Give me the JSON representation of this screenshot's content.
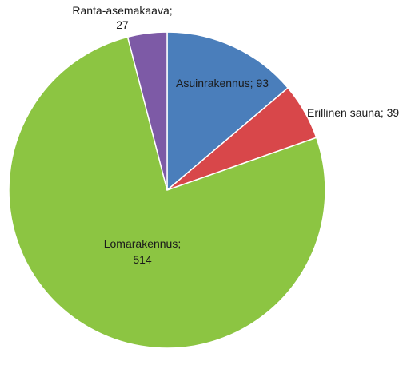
{
  "chart_data": {
    "type": "pie",
    "title": "",
    "slices": [
      {
        "label": "Asuinrakennus; 93",
        "value": 93,
        "color": "#4a7ebb"
      },
      {
        "label": "Erillinen sauna; 39",
        "value": 39,
        "color": "#d8474a"
      },
      {
        "label": "Lomarakennus; 514",
        "value": 514,
        "color": "#8cc542"
      },
      {
        "label": "Ranta-asemakaava; 27",
        "value": 27,
        "color": "#7d5aa6"
      }
    ]
  }
}
